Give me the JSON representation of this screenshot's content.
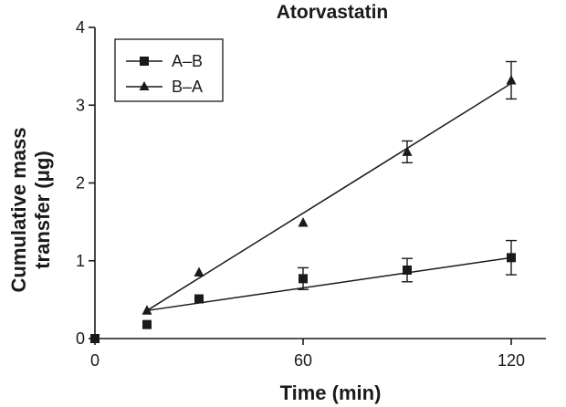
{
  "chart_data": {
    "type": "scatter",
    "title": "Atorvastatin",
    "xlabel": "Time (min)",
    "ylabel_lines": [
      "Cumulative mass",
      "transfer (μg)"
    ],
    "xlim": [
      0,
      130
    ],
    "ylim": [
      0,
      4
    ],
    "x_ticks": [
      0,
      60,
      120
    ],
    "y_ticks": [
      0,
      1,
      2,
      3,
      4
    ],
    "grid": false,
    "legend_position": "top-left",
    "series": [
      {
        "name": "A–B",
        "marker": "square",
        "color": "#1a1a1a",
        "points": [
          {
            "x": 0,
            "y": 0,
            "err": 0
          },
          {
            "x": 15,
            "y": 0.18,
            "err": 0
          },
          {
            "x": 30,
            "y": 0.51,
            "err": 0
          },
          {
            "x": 60,
            "y": 0.77,
            "err": 0.14
          },
          {
            "x": 90,
            "y": 0.88,
            "err": 0.15
          },
          {
            "x": 120,
            "y": 1.04,
            "err": 0.22
          }
        ],
        "fit_line": [
          [
            15,
            0.36
          ],
          [
            120,
            1.04
          ]
        ]
      },
      {
        "name": "B–A",
        "marker": "triangle",
        "color": "#1a1a1a",
        "points": [
          {
            "x": 0,
            "y": 0,
            "err": 0
          },
          {
            "x": 15,
            "y": 0.36,
            "err": 0
          },
          {
            "x": 30,
            "y": 0.85,
            "err": 0
          },
          {
            "x": 60,
            "y": 1.49,
            "err": 0
          },
          {
            "x": 90,
            "y": 2.4,
            "err": 0.14
          },
          {
            "x": 120,
            "y": 3.32,
            "err": 0.24
          }
        ],
        "fit_line": [
          [
            15,
            0.36
          ],
          [
            120,
            3.28
          ]
        ]
      }
    ]
  }
}
